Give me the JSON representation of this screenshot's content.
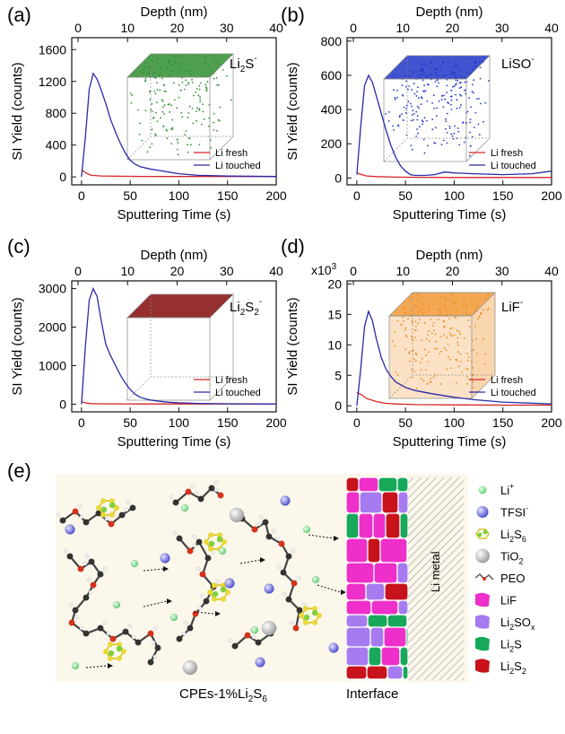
{
  "colors": {
    "fresh": "#d62424",
    "touched": "#2a2aa8",
    "li_ion": "#7fdc8a",
    "tfsi": "#6a6ae0",
    "li2s6": "#a8d83a",
    "tio2": "#bdbdbd",
    "lif": "#ee2fc9",
    "li2sox": "#a67bf0",
    "li2s": "#17a85a",
    "li2s2": "#c8121c"
  },
  "chart_data": [
    {
      "panel": "(a)",
      "type": "line",
      "species_main": "Li",
      "species_sub": "2",
      "species_tail": "S",
      "species_sup": "-",
      "top_axis_label": "Depth (nm)",
      "top_ticks": [
        "0",
        "10",
        "20",
        "30",
        "40"
      ],
      "xlabel": "Sputtering Time (s)",
      "ylabel": "SI Yield (counts)",
      "xlim": [
        -10,
        200
      ],
      "ylim": [
        -100,
        1750
      ],
      "xticks": [
        0,
        50,
        100,
        150,
        200
      ],
      "yticks": [
        0,
        400,
        800,
        1200,
        1600
      ],
      "multiplier": "",
      "legend": [
        "Li fresh",
        "Li touched"
      ],
      "series": [
        {
          "name": "Li fresh",
          "x": [
            0,
            5,
            10,
            20,
            40,
            60,
            100,
            150,
            200
          ],
          "y": [
            90,
            45,
            20,
            12,
            8,
            6,
            5,
            5,
            5
          ]
        },
        {
          "name": "Li touched",
          "x": [
            0,
            4,
            8,
            12,
            16,
            20,
            25,
            30,
            35,
            40,
            45,
            50,
            55,
            60,
            70,
            80,
            90,
            100,
            120,
            150,
            200
          ],
          "y": [
            0,
            500,
            1100,
            1300,
            1230,
            1100,
            920,
            720,
            560,
            420,
            300,
            210,
            160,
            130,
            100,
            80,
            60,
            40,
            20,
            10,
            5
          ]
        }
      ],
      "cube": {
        "color": "#2f8f2f",
        "density": "medium"
      }
    },
    {
      "panel": "(b)",
      "type": "line",
      "species_main": "LiSO",
      "species_sub": "",
      "species_tail": "",
      "species_sup": "-",
      "top_axis_label": "Depth (nm)",
      "top_ticks": [
        "0",
        "10",
        "20",
        "30",
        "40"
      ],
      "xlabel": "Sputtering Time (s)",
      "ylabel": "SI Yield (counts)",
      "xlim": [
        -10,
        200
      ],
      "ylim": [
        -40,
        820
      ],
      "xticks": [
        0,
        50,
        100,
        150,
        200
      ],
      "yticks": [
        0,
        200,
        400,
        600,
        800
      ],
      "multiplier": "",
      "legend": [
        "Li fresh",
        "Li touched"
      ],
      "series": [
        {
          "name": "Li fresh",
          "x": [
            0,
            5,
            10,
            20,
            40,
            60,
            100,
            150,
            200
          ],
          "y": [
            30,
            20,
            12,
            8,
            5,
            4,
            3,
            3,
            3
          ]
        },
        {
          "name": "Li touched",
          "x": [
            0,
            4,
            8,
            12,
            16,
            20,
            25,
            30,
            35,
            40,
            45,
            50,
            55,
            60,
            70,
            80,
            90,
            100,
            120,
            150,
            180,
            200
          ],
          "y": [
            20,
            300,
            540,
            600,
            560,
            480,
            380,
            280,
            190,
            120,
            70,
            40,
            20,
            15,
            15,
            20,
            35,
            30,
            25,
            20,
            25,
            40
          ]
        }
      ],
      "cube": {
        "color": "#2236c8",
        "density": "high"
      }
    },
    {
      "panel": "(c)",
      "type": "line",
      "species_main": "Li",
      "species_sub": "2",
      "species_tail": "S",
      "species_sub2": "2",
      "species_sup": "-",
      "top_axis_label": "Depth (nm)",
      "top_ticks": [
        "0",
        "10",
        "20",
        "30",
        "40"
      ],
      "xlabel": "Sputtering Time (s)",
      "ylabel": "SI Yield (counts)",
      "xlim": [
        -10,
        200
      ],
      "ylim": [
        -200,
        3200
      ],
      "xticks": [
        0,
        50,
        100,
        150,
        200
      ],
      "yticks": [
        0,
        1000,
        2000,
        3000
      ],
      "multiplier": "",
      "legend": [
        "Li fresh",
        "Li touched"
      ],
      "series": [
        {
          "name": "Li fresh",
          "x": [
            0,
            5,
            10,
            20,
            40,
            60,
            100,
            150,
            200
          ],
          "y": [
            60,
            30,
            15,
            10,
            8,
            6,
            5,
            5,
            5
          ]
        },
        {
          "name": "Li touched",
          "x": [
            0,
            4,
            8,
            12,
            16,
            20,
            25,
            30,
            35,
            40,
            45,
            50,
            55,
            60,
            70,
            80,
            90,
            100,
            120,
            150,
            200
          ],
          "y": [
            0,
            1500,
            2700,
            3000,
            2800,
            2200,
            1550,
            1250,
            1000,
            750,
            550,
            380,
            260,
            180,
            110,
            75,
            50,
            35,
            20,
            10,
            5
          ]
        }
      ],
      "cube": {
        "color": "#8b1a1a",
        "density": "surface"
      }
    },
    {
      "panel": "(d)",
      "type": "line",
      "species_main": "LiF",
      "species_sub": "",
      "species_tail": "",
      "species_sup": "-",
      "top_axis_label": "Depth (nm)",
      "top_ticks": [
        "0",
        "10",
        "20",
        "30",
        "40"
      ],
      "xlabel": "Sputtering Time (s)",
      "ylabel": "SI Yield (counts)",
      "xlim": [
        -10,
        200
      ],
      "ylim": [
        -1,
        20.5
      ],
      "xticks": [
        0,
        50,
        100,
        150,
        200
      ],
      "yticks": [
        0,
        5,
        10,
        15,
        20
      ],
      "multiplier": "x10",
      "multiplier_exp": "3",
      "legend": [
        "Li fresh",
        "Li touched"
      ],
      "series": [
        {
          "name": "Li fresh",
          "x": [
            0,
            5,
            10,
            20,
            30,
            40,
            60,
            100,
            150,
            200
          ],
          "y": [
            2.2,
            1.8,
            1.2,
            0.7,
            0.4,
            0.3,
            0.2,
            0.15,
            0.1,
            0.1
          ]
        },
        {
          "name": "Li touched",
          "x": [
            0,
            4,
            8,
            12,
            16,
            20,
            25,
            30,
            35,
            40,
            50,
            60,
            70,
            80,
            100,
            120,
            150,
            200
          ],
          "y": [
            0,
            6,
            13,
            15.5,
            14,
            11,
            8,
            6,
            4.8,
            3.9,
            3.0,
            2.5,
            2.2,
            1.9,
            1.4,
            1.0,
            0.6,
            0.3
          ]
        }
      ],
      "cube": {
        "color": "#f08a1a",
        "density": "dense"
      }
    }
  ],
  "schematic": {
    "panel": "(e)",
    "left_label_main": "CPEs-1%Li",
    "left_label_sub1": "2",
    "left_label_tail": "S",
    "left_label_sub2": "6",
    "interface_label": "Interface",
    "metal_label": "Li metal",
    "legend": [
      {
        "key": "li_ion",
        "text": "Li",
        "sup": "+",
        "sub": ""
      },
      {
        "key": "tfsi",
        "text": "TFSI",
        "sup": "-",
        "sub": ""
      },
      {
        "key": "li2s6",
        "text": "Li",
        "sub": "2",
        "tail": "S",
        "sub2": "6"
      },
      {
        "key": "tio2",
        "text": "TiO",
        "sub": "2"
      },
      {
        "key": "peo",
        "text": "PEO"
      },
      {
        "key": "lif",
        "text": "LiF"
      },
      {
        "key": "li2sox",
        "text": "Li",
        "sub": "2",
        "tail": "SO",
        "sub2": "x"
      },
      {
        "key": "li2s",
        "text": "Li",
        "sub": "2",
        "tail": "S"
      },
      {
        "key": "li2s2",
        "text": "Li",
        "sub": "2",
        "tail": "S",
        "sub2": "2"
      }
    ]
  }
}
